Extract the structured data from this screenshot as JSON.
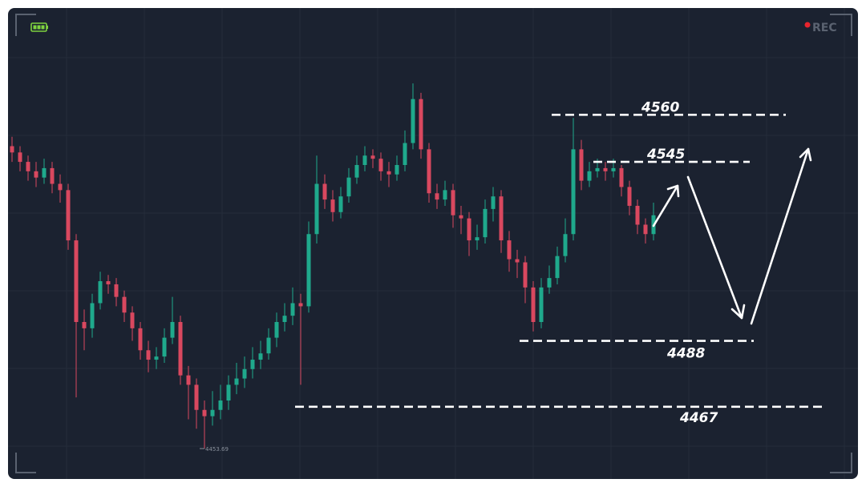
{
  "recording_label": "REC",
  "chart_data": {
    "type": "candlestick",
    "ylim": [
      4444,
      4594
    ],
    "up_color": "#1fa98c",
    "down_color": "#d9485f",
    "open": [
      4550,
      4548,
      4545,
      4542,
      4540,
      4543,
      4538,
      4536,
      4520,
      4494,
      4492,
      4500,
      4507,
      4506,
      4502,
      4497,
      4492,
      4485,
      4482,
      4483,
      4489,
      4494,
      4477,
      4474,
      4466,
      4464,
      4466,
      4469,
      4474,
      4476,
      4479,
      4482,
      4484,
      4489,
      4494,
      4496,
      4500,
      4499,
      4522,
      4538,
      4533,
      4529,
      4534,
      4540,
      4544,
      4547,
      4546,
      4542,
      4541,
      4544,
      4551,
      4565,
      4549,
      4535,
      4533,
      4536,
      4528,
      4527,
      4520,
      4521,
      4530,
      4534,
      4520,
      4514,
      4513,
      4505,
      4494,
      4505,
      4508,
      4515,
      4522,
      4549,
      4539,
      4542,
      4543,
      4542,
      4543,
      4537,
      4531,
      4525,
      4522
    ],
    "high": [
      4553,
      4550,
      4547,
      4545,
      4546,
      4545,
      4541,
      4538,
      4522,
      4498,
      4503,
      4510,
      4509,
      4508,
      4504,
      4499,
      4494,
      4488,
      4486,
      4492,
      4502,
      4496,
      4480,
      4476,
      4469,
      4472,
      4474,
      4477,
      4481,
      4483,
      4486,
      4488,
      4492,
      4497,
      4500,
      4505,
      4503,
      4526,
      4547,
      4541,
      4536,
      4537,
      4543,
      4547,
      4550,
      4549,
      4548,
      4545,
      4547,
      4555,
      4570,
      4567,
      4551,
      4538,
      4539,
      4538,
      4531,
      4529,
      4525,
      4533,
      4537,
      4536,
      4523,
      4517,
      4515,
      4507,
      4508,
      4512,
      4518,
      4527,
      4559,
      4552,
      4545,
      4546,
      4545,
      4546,
      4544,
      4539,
      4533,
      4527,
      4532
    ],
    "low": [
      4545,
      4542,
      4539,
      4537,
      4538,
      4535,
      4532,
      4517,
      4470,
      4485,
      4489,
      4498,
      4503,
      4499,
      4494,
      4488,
      4482,
      4478,
      4479,
      4481,
      4487,
      4474,
      4463,
      4460,
      4453.69,
      4461,
      4463,
      4466,
      4471,
      4473,
      4476,
      4479,
      4482,
      4486,
      4491,
      4493,
      4474,
      4497,
      4519,
      4530,
      4526,
      4527,
      4532,
      4538,
      4542,
      4543,
      4539,
      4537,
      4539,
      4542,
      4549,
      4546,
      4532,
      4530,
      4531,
      4524,
      4522,
      4515,
      4517,
      4519,
      4526,
      4516,
      4510,
      4508,
      4500,
      4491,
      4492,
      4503,
      4506,
      4513,
      4520,
      4536,
      4537,
      4540,
      4539,
      4540,
      4534,
      4528,
      4522,
      4519,
      4520
    ],
    "close": [
      4548,
      4545,
      4542,
      4540,
      4543,
      4538,
      4536,
      4520,
      4494,
      4492,
      4500,
      4507,
      4506,
      4502,
      4497,
      4492,
      4485,
      4482,
      4483,
      4489,
      4494,
      4477,
      4474,
      4466,
      4464,
      4466,
      4469,
      4474,
      4476,
      4479,
      4482,
      4484,
      4489,
      4494,
      4496,
      4500,
      4499,
      4522,
      4538,
      4533,
      4529,
      4534,
      4540,
      4544,
      4547,
      4546,
      4542,
      4541,
      4544,
      4551,
      4565,
      4549,
      4535,
      4533,
      4536,
      4528,
      4527,
      4520,
      4521,
      4530,
      4534,
      4520,
      4514,
      4513,
      4505,
      4494,
      4505,
      4508,
      4515,
      4522,
      4549,
      4539,
      4542,
      4543,
      4542,
      4543,
      4537,
      4531,
      4525,
      4522,
      4528
    ],
    "levels": [
      4560,
      4545,
      4488,
      4467
    ]
  }
}
